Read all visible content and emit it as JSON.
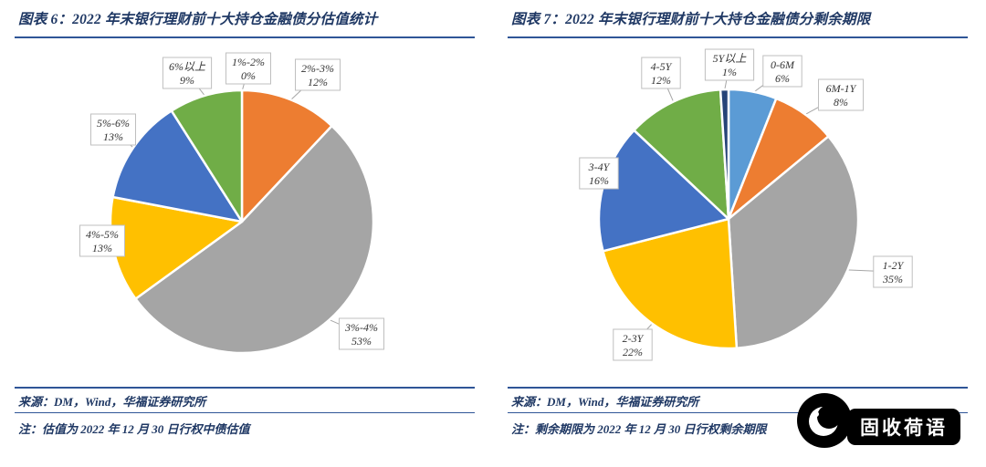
{
  "page": {
    "background": "#ffffff",
    "accent_navy": "#1F3864",
    "rule_color": "#2F5597"
  },
  "watermark": {
    "brand": "固收荷语",
    "icon": "crescent-logo"
  },
  "charts": [
    {
      "title": "图表 6：2022 年末银行理财前十大持仓金融债分估值统计",
      "source": "来源：DM，Wind，华福证券研究所",
      "note": "注：估值为 2022 年 12 月 30 日行权中债估值",
      "chart_data": {
        "type": "pie",
        "unit": "%",
        "title": "2022 年末银行理财前十大持仓金融债分估值统计",
        "direction": "clockwise",
        "start_angle_deg": 0,
        "legend_position": "callout-labels",
        "center": [
          265,
          199
        ],
        "radius": 144,
        "slices": [
          {
            "label": "1%-2%",
            "value": 0,
            "color": "#264478",
            "callout": [
              272,
              31
            ]
          },
          {
            "label": "2%-3%",
            "value": 12,
            "color": "#ED7D31",
            "callout": [
              348,
              38
            ]
          },
          {
            "label": "3%-4%",
            "value": 53,
            "color": "#A5A5A5",
            "callout": [
              396,
              322
            ]
          },
          {
            "label": "4%-5%",
            "value": 13,
            "color": "#FFC000",
            "callout": [
              112,
              220
            ]
          },
          {
            "label": "5%-6%",
            "value": 13,
            "color": "#4472C4",
            "callout": [
              124,
              98
            ]
          },
          {
            "label": "6%以上",
            "value": 9,
            "color": "#70AD47",
            "callout": [
              205,
              36
            ]
          }
        ]
      }
    },
    {
      "title": "图表 7：2022 年末银行理财前十大持仓金融债分剩余期限",
      "source": "来源：DM，Wind，华福证券研究所",
      "note": "注：剩余期限为 2022 年 12 月 30 日行权剩余期限",
      "chart_data": {
        "type": "pie",
        "unit": "%",
        "title": "2022 年末银行理财前十大持仓金融债分剩余期限",
        "direction": "clockwise",
        "start_angle_deg": 0,
        "legend_position": "callout-labels",
        "center": [
          258,
          196
        ],
        "radius": 142,
        "slices": [
          {
            "label": "0-6M",
            "value": 6,
            "color": "#5B9BD5",
            "callout": [
              317,
              34
            ]
          },
          {
            "label": "6M-1Y",
            "value": 8,
            "color": "#ED7D31",
            "callout": [
              381,
              60
            ]
          },
          {
            "label": "1-2Y",
            "value": 35,
            "color": "#A5A5A5",
            "callout": [
              438,
              254
            ]
          },
          {
            "label": "2-3Y",
            "value": 22,
            "color": "#FFC000",
            "callout": [
              153,
              334
            ]
          },
          {
            "label": "3-4Y",
            "value": 16,
            "color": "#4472C4",
            "callout": [
              116,
              146
            ]
          },
          {
            "label": "4-5Y",
            "value": 12,
            "color": "#70AD47",
            "callout": [
              184,
              36
            ]
          },
          {
            "label": "5Y以上",
            "value": 1,
            "color": "#264478",
            "callout": [
              259,
              27
            ]
          }
        ]
      }
    }
  ]
}
